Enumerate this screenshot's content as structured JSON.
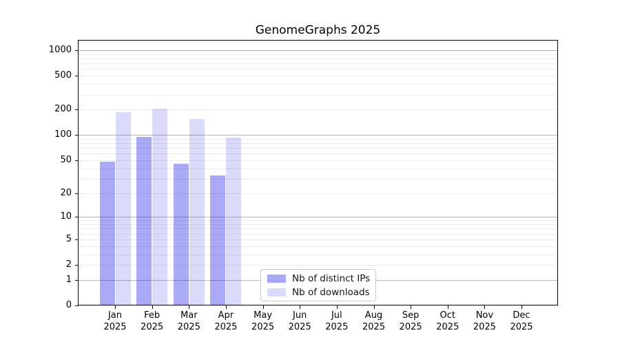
{
  "figure": {
    "title": "GenomeGraphs 2025"
  },
  "chart_data": {
    "type": "bar",
    "title": "GenomeGraphs 2025",
    "categories": [
      "Jan 2025",
      "Feb 2025",
      "Mar 2025",
      "Apr 2025",
      "May 2025",
      "Jun 2025",
      "Jul 2025",
      "Aug 2025",
      "Sep 2025",
      "Oct 2025",
      "Nov 2025",
      "Dec 2025"
    ],
    "series": [
      {
        "name": "Nb of distinct IPs",
        "color": "rgba(10,10,228,0.35)",
        "values": [
          48,
          95,
          45,
          33,
          0,
          0,
          0,
          0,
          0,
          0,
          0,
          0
        ]
      },
      {
        "name": "Nb of downloads",
        "color": "rgba(10,10,228,0.15)",
        "values": [
          185,
          205,
          155,
          93,
          0,
          0,
          0,
          0,
          0,
          0,
          0,
          0
        ]
      }
    ],
    "y_axis": {
      "scale": "log1p",
      "tick_labels": [
        0,
        1,
        2,
        5,
        10,
        20,
        50,
        100,
        200,
        500,
        1000
      ],
      "ylim": [
        0,
        1300
      ]
    },
    "grid": {
      "major_values": [
        1,
        10,
        100,
        1000
      ],
      "minor_values": [
        2,
        3,
        4,
        5,
        6,
        7,
        8,
        9,
        20,
        30,
        40,
        50,
        60,
        70,
        80,
        90,
        200,
        300,
        400,
        500,
        600,
        700,
        800,
        900
      ],
      "major_color": "#b5b5b5",
      "minor_color": "#ebebeb",
      "orientation": "horizontal"
    },
    "legend": {
      "position": "inside-bottom-center",
      "entries": [
        "Nb of distinct IPs",
        "Nb of downloads"
      ]
    }
  }
}
